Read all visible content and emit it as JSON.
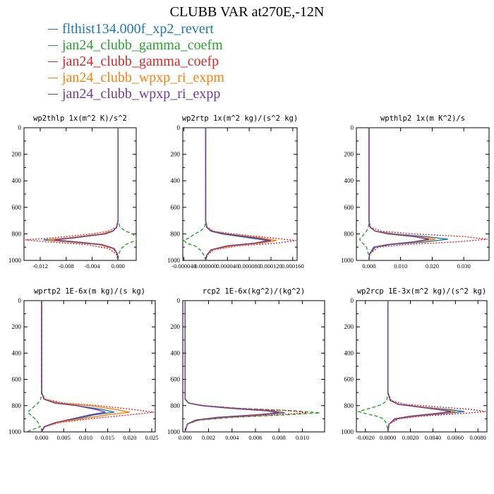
{
  "title": "CLUBB VAR at270E,-12N",
  "legend": [
    {
      "label": "flthist134.000f_xp2_revert",
      "color": "#1f77b4"
    },
    {
      "label": "jan24_clubb_gamma_coefm",
      "color": "#2ca02c"
    },
    {
      "label": "jan24_clubb_gamma_coefp",
      "color": "#d62728"
    },
    {
      "label": "jan24_clubb_wpxp_ri_expm",
      "color": "#ff7f0e"
    },
    {
      "label": "jan24_clubb_wpxp_ri_expp",
      "color": "#6a3d9a"
    }
  ],
  "chart_data": [
    {
      "type": "line",
      "title": "wp2thlp   1x(m^2 K)/s^2",
      "xlim": [
        -0.0145,
        0.0028
      ],
      "ylim": [
        1000,
        0
      ],
      "y_inverted": true,
      "xticks": [
        -0.012,
        -0.008,
        -0.004,
        0.0
      ],
      "xtick_labels": [
        "-0.012",
        "-0.008",
        "-0.004",
        "0.000"
      ],
      "yticks": [
        0,
        200,
        400,
        600,
        800,
        1000
      ],
      "series": [
        {
          "y": [
            0,
            700,
            750,
            780,
            800,
            830,
            845,
            860,
            880,
            910,
            950,
            1000
          ],
          "x": [
            0.0,
            0.0,
            -0.0002,
            -0.0008,
            -0.002,
            -0.007,
            -0.0115,
            -0.008,
            -0.003,
            -0.0008,
            -0.0001,
            0.0
          ]
        },
        {
          "y": [
            0,
            700,
            750,
            780,
            800,
            830,
            845,
            860,
            880,
            910,
            950,
            1000
          ],
          "x": [
            0.0,
            0.0,
            0.0003,
            0.0012,
            0.0022,
            0.0028,
            0.0028,
            0.0022,
            0.0012,
            0.0005,
            0.0001,
            0.0
          ]
        },
        {
          "y": [
            0,
            700,
            750,
            780,
            800,
            830,
            845,
            860,
            880,
            910,
            950,
            1000
          ],
          "x": [
            0.0,
            0.0,
            -0.0003,
            -0.0015,
            -0.004,
            -0.01,
            -0.0143,
            -0.011,
            -0.005,
            -0.0015,
            -0.0003,
            0.0
          ]
        },
        {
          "y": [
            0,
            700,
            750,
            780,
            800,
            830,
            845,
            860,
            880,
            910,
            950,
            1000
          ],
          "x": [
            0.0,
            0.0,
            -0.0002,
            -0.0009,
            -0.0025,
            -0.0075,
            -0.0108,
            -0.0075,
            -0.003,
            -0.0008,
            -0.0001,
            0.0
          ]
        },
        {
          "y": [
            0,
            700,
            750,
            780,
            800,
            830,
            845,
            860,
            880,
            910,
            950,
            1000
          ],
          "x": [
            0.0,
            0.0,
            -0.0002,
            -0.0008,
            -0.002,
            -0.0068,
            -0.0098,
            -0.0065,
            -0.0025,
            -0.0006,
            -0.0001,
            0.0
          ]
        }
      ]
    },
    {
      "type": "line",
      "title": "wp2rtp   1x(m^2 kg)/(s^2 kg)",
      "xlim": [
        -4.2e-05,
        0.000168
      ],
      "ylim": [
        1000,
        0
      ],
      "y_inverted": true,
      "xticks": [
        -4e-05,
        0.0,
        4e-05,
        8e-05,
        0.00012,
        0.00016
      ],
      "xtick_labels": [
        "-0.000040",
        "0.000000",
        "0.000040",
        "0.000080",
        "0.000120",
        "0.000160"
      ],
      "yticks": [
        0,
        200,
        400,
        600,
        800,
        1000
      ],
      "series": [
        {
          "y": [
            0,
            700,
            750,
            780,
            800,
            830,
            850,
            870,
            890,
            920,
            960,
            1000
          ],
          "x": [
            0.0,
            0.0,
            2e-06,
            1e-05,
            3e-05,
            8e-05,
            0.000115,
            9e-05,
            4e-05,
            1e-05,
            2e-06,
            0.0
          ]
        },
        {
          "y": [
            0,
            700,
            750,
            780,
            800,
            830,
            850,
            870,
            890,
            920,
            960,
            1000
          ],
          "x": [
            0.0,
            0.0,
            -2e-06,
            -1e-05,
            -2e-05,
            -3e-05,
            -4e-05,
            -3.5e-05,
            -2e-05,
            -1e-05,
            -3e-06,
            0.0
          ]
        },
        {
          "y": [
            0,
            700,
            750,
            780,
            800,
            830,
            850,
            870,
            890,
            920,
            960,
            1000
          ],
          "x": [
            0.0,
            0.0,
            3e-06,
            1.5e-05,
            5e-05,
            0.00012,
            0.000166,
            0.00013,
            6e-05,
            1.5e-05,
            3e-06,
            0.0
          ]
        },
        {
          "y": [
            0,
            700,
            750,
            780,
            800,
            830,
            850,
            870,
            890,
            920,
            960,
            1000
          ],
          "x": [
            0.0,
            0.0,
            2e-06,
            1.2e-05,
            4e-05,
            0.0001,
            0.00013,
            0.0001,
            5e-05,
            1.2e-05,
            2e-06,
            0.0
          ]
        },
        {
          "y": [
            0,
            700,
            750,
            780,
            800,
            830,
            850,
            870,
            890,
            920,
            960,
            1000
          ],
          "x": [
            0.0,
            0.0,
            2e-06,
            1e-05,
            3.5e-05,
            9e-05,
            0.00012,
            9e-05,
            4e-05,
            1e-05,
            2e-06,
            0.0
          ]
        }
      ]
    },
    {
      "type": "line",
      "title": "wpthlp2   1x(m K^2)/s",
      "xlim": [
        -0.004,
        0.038
      ],
      "ylim": [
        1000,
        0
      ],
      "y_inverted": true,
      "xticks": [
        0.0,
        0.01,
        0.02,
        0.03
      ],
      "xtick_labels": [
        "0.000",
        "0.010",
        "0.020",
        "0.030"
      ],
      "yticks": [
        0,
        200,
        400,
        600,
        800,
        1000
      ],
      "series": [
        {
          "y": [
            0,
            700,
            750,
            780,
            800,
            820,
            840,
            860,
            880,
            900,
            950,
            1000
          ],
          "x": [
            0.0,
            0.0,
            0.0003,
            0.002,
            0.008,
            0.018,
            0.025,
            0.018,
            0.007,
            0.002,
            0.0002,
            0.0
          ]
        },
        {
          "y": [
            0,
            700,
            750,
            780,
            800,
            820,
            840,
            860,
            880,
            900,
            950,
            1000
          ],
          "x": [
            0.0,
            0.0,
            -0.0002,
            -0.0008,
            -0.0015,
            -0.0022,
            -0.003,
            -0.0025,
            -0.0015,
            -0.0008,
            -0.0002,
            0.0
          ]
        },
        {
          "y": [
            0,
            700,
            750,
            780,
            800,
            820,
            840,
            860,
            880,
            900,
            950,
            1000
          ],
          "x": [
            0.0,
            0.0,
            0.0005,
            0.004,
            0.014,
            0.03,
            0.0375,
            0.028,
            0.012,
            0.003,
            0.0003,
            0.0
          ]
        },
        {
          "y": [
            0,
            700,
            750,
            780,
            800,
            820,
            840,
            860,
            880,
            900,
            950,
            1000
          ],
          "x": [
            0.0,
            0.0,
            0.0003,
            0.002,
            0.007,
            0.015,
            0.021,
            0.015,
            0.006,
            0.0015,
            0.0002,
            0.0
          ]
        },
        {
          "y": [
            0,
            700,
            750,
            780,
            800,
            820,
            840,
            860,
            880,
            900,
            950,
            1000
          ],
          "x": [
            0.0,
            0.0,
            0.0003,
            0.002,
            0.006,
            0.014,
            0.019,
            0.014,
            0.006,
            0.0015,
            0.0002,
            0.0
          ]
        }
      ]
    },
    {
      "type": "line",
      "title": "wprtp2   1E-6x(m kg)/(s kg)",
      "xlim": [
        -0.004,
        0.0258
      ],
      "ylim": [
        1000,
        0
      ],
      "y_inverted": true,
      "xticks": [
        0.0,
        0.005,
        0.01,
        0.015,
        0.02,
        0.025
      ],
      "xtick_labels": [
        "0.000",
        "0.005",
        "0.010",
        "0.015",
        "0.020",
        "0.025"
      ],
      "yticks": [
        0,
        200,
        400,
        600,
        800,
        1000
      ],
      "series": [
        {
          "y": [
            0,
            700,
            750,
            780,
            800,
            830,
            850,
            870,
            900,
            930,
            960,
            1000
          ],
          "x": [
            0.0,
            0.0,
            0.0005,
            0.003,
            0.008,
            0.014,
            0.0165,
            0.012,
            0.008,
            0.003,
            0.0006,
            0.0
          ]
        },
        {
          "y": [
            0,
            700,
            750,
            780,
            800,
            830,
            850,
            870,
            900,
            930,
            960,
            1000
          ],
          "x": [
            0.0,
            0.0,
            -0.0002,
            -0.0008,
            -0.0015,
            -0.0025,
            -0.0032,
            -0.0025,
            -0.0015,
            -0.0008,
            -0.0003,
            -0.0035
          ]
        },
        {
          "y": [
            0,
            700,
            750,
            780,
            800,
            830,
            850,
            870,
            900,
            930,
            960,
            1000
          ],
          "x": [
            0.0,
            0.0,
            0.0008,
            0.005,
            0.013,
            0.021,
            0.0255,
            0.02,
            0.011,
            0.004,
            0.0008,
            0.0
          ]
        },
        {
          "y": [
            0,
            700,
            750,
            780,
            800,
            830,
            850,
            870,
            900,
            930,
            960,
            1000
          ],
          "x": [
            0.0,
            0.0,
            0.0006,
            0.004,
            0.011,
            0.017,
            0.02,
            0.015,
            0.009,
            0.0035,
            0.0007,
            0.0
          ]
        },
        {
          "y": [
            0,
            700,
            750,
            780,
            800,
            830,
            850,
            870,
            900,
            930,
            960,
            1000
          ],
          "x": [
            0.0,
            0.0,
            0.0005,
            0.003,
            0.008,
            0.0125,
            0.0145,
            0.011,
            0.007,
            0.003,
            0.0006,
            0.0
          ]
        }
      ]
    },
    {
      "type": "line",
      "title": "rcp2   1E-6x(kg^2)/(kg^2)",
      "xlim": [
        -0.0002,
        0.0119
      ],
      "ylim": [
        1000,
        0
      ],
      "y_inverted": true,
      "xticks": [
        0.0,
        0.002,
        0.004,
        0.006,
        0.008,
        0.01
      ],
      "xtick_labels": [
        "0.000",
        "0.002",
        "0.004",
        "0.006",
        "0.008",
        "0.010"
      ],
      "yticks": [
        0,
        200,
        400,
        600,
        800,
        1000
      ],
      "series": [
        {
          "y": [
            0,
            750,
            780,
            800,
            820,
            840,
            855,
            870,
            890,
            910,
            940,
            1000
          ],
          "x": [
            0.0,
            0.0,
            0.0003,
            0.0015,
            0.004,
            0.0075,
            0.0085,
            0.0065,
            0.003,
            0.001,
            0.0002,
            0.0
          ]
        },
        {
          "y": [
            0,
            750,
            780,
            800,
            820,
            840,
            855,
            870,
            890,
            910,
            940,
            1000
          ],
          "x": [
            0.0,
            0.0,
            0.0003,
            0.0015,
            0.0045,
            0.0095,
            0.0115,
            0.0085,
            0.004,
            0.0012,
            0.0002,
            0.0
          ]
        },
        {
          "y": [
            0,
            750,
            780,
            800,
            820,
            840,
            855,
            870,
            890,
            910,
            940,
            1000
          ],
          "x": [
            0.0,
            0.0,
            0.0003,
            0.0017,
            0.0045,
            0.009,
            0.0105,
            0.0078,
            0.0035,
            0.0011,
            0.0002,
            0.0
          ]
        },
        {
          "y": [
            0,
            750,
            780,
            800,
            820,
            840,
            855,
            870,
            890,
            910,
            940,
            1000
          ],
          "x": [
            0.0,
            0.0,
            0.0003,
            0.0015,
            0.004,
            0.0072,
            0.0082,
            0.0062,
            0.0028,
            0.0009,
            0.0002,
            0.0
          ]
        },
        {
          "y": [
            0,
            750,
            780,
            800,
            820,
            840,
            855,
            870,
            890,
            910,
            940,
            1000
          ],
          "x": [
            0.0,
            0.0,
            0.0003,
            0.0014,
            0.0038,
            0.007,
            0.008,
            0.006,
            0.0027,
            0.0009,
            0.0002,
            0.0
          ]
        }
      ]
    },
    {
      "type": "line",
      "title": "wp2rcp   1E-3x(m^2 kg)/(s^2 kg)",
      "xlim": [
        -0.0028,
        0.0088
      ],
      "ylim": [
        1000,
        0
      ],
      "y_inverted": true,
      "xticks": [
        -0.002,
        0.0,
        0.002,
        0.004,
        0.006,
        0.008
      ],
      "xtick_labels": [
        "-0.0020",
        "0.0000",
        "0.0020",
        "0.0040",
        "0.0060",
        "0.0080"
      ],
      "yticks": [
        0,
        200,
        400,
        600,
        800,
        1000
      ],
      "series": [
        {
          "y": [
            0,
            700,
            760,
            790,
            810,
            830,
            845,
            860,
            880,
            900,
            940,
            1000
          ],
          "x": [
            0.0,
            0.0,
            0.0002,
            0.001,
            0.003,
            0.0055,
            0.0068,
            0.005,
            0.0025,
            0.0008,
            0.0001,
            0.0
          ]
        },
        {
          "y": [
            0,
            700,
            760,
            790,
            810,
            830,
            845,
            860,
            880,
            900,
            940,
            1000
          ],
          "x": [
            0.0,
            0.0,
            -0.0001,
            -0.0005,
            -0.0012,
            -0.002,
            -0.0026,
            -0.002,
            -0.001,
            -0.0004,
            -0.0001,
            0.0
          ]
        },
        {
          "y": [
            0,
            700,
            760,
            790,
            810,
            830,
            845,
            860,
            880,
            900,
            940,
            1000
          ],
          "x": [
            0.0,
            0.0,
            0.0003,
            0.0015,
            0.0045,
            0.0075,
            0.0087,
            0.0065,
            0.003,
            0.001,
            0.0001,
            0.0
          ]
        },
        {
          "y": [
            0,
            700,
            760,
            790,
            810,
            830,
            845,
            860,
            880,
            900,
            940,
            1000
          ],
          "x": [
            0.0,
            0.0,
            0.0002,
            0.001,
            0.003,
            0.0048,
            0.006,
            0.0045,
            0.0022,
            0.0007,
            0.0001,
            0.0
          ]
        },
        {
          "y": [
            0,
            700,
            760,
            790,
            810,
            830,
            845,
            860,
            880,
            900,
            940,
            1000
          ],
          "x": [
            0.0,
            0.0,
            0.0002,
            0.0009,
            0.0027,
            0.0045,
            0.0056,
            0.0042,
            0.002,
            0.0006,
            0.0001,
            0.0
          ]
        }
      ]
    }
  ]
}
